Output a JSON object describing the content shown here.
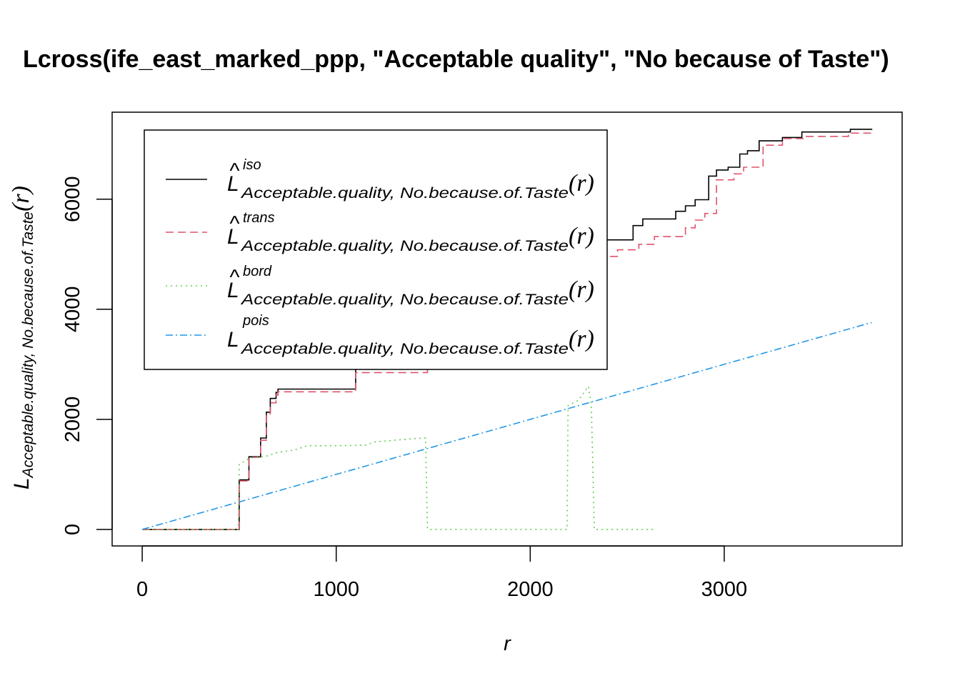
{
  "chart_data": {
    "type": "line",
    "title": "Lcross(ife_east_marked_ppp, \"Acceptable quality\", \"No because of Taste\")",
    "xlabel": "r",
    "ylabel": {
      "main": "L",
      "sub": "Acceptable.quality, No.because.of.Taste",
      "arg": "(r)"
    },
    "xlim": [
      -155,
      3917
    ],
    "ylim": [
      -300,
      7580
    ],
    "xticks": [
      0,
      1000,
      2000,
      3000
    ],
    "xtick_labels": [
      "0",
      "1000",
      "2000",
      "3000"
    ],
    "yticks": [
      0,
      2000,
      4000,
      6000
    ],
    "ytick_labels": [
      "0",
      "2000",
      "4000",
      "6000"
    ],
    "grid": false,
    "legend_position": "top-left",
    "series": [
      {
        "name": "iso",
        "legend": {
          "main": "L",
          "hat": "^",
          "sup": "iso",
          "sub": "Acceptable.quality, No.because.of.Taste",
          "arg": "(r)"
        },
        "color": "#000000",
        "dash": "",
        "step": true,
        "x": [
          0,
          495,
          500,
          550,
          610,
          640,
          660,
          690,
          700,
          1090,
          1100,
          1460,
          1470,
          1500,
          1560,
          1620,
          1770,
          1790,
          1810,
          1850,
          1900,
          2190,
          2230,
          2260,
          2300,
          2400,
          2530,
          2580,
          2620,
          2750,
          2800,
          2850,
          2920,
          2960,
          3020,
          3080,
          3120,
          3180,
          3300,
          3400,
          3650,
          3760
        ],
        "y": [
          0,
          0,
          900,
          1320,
          1660,
          2130,
          2380,
          2490,
          2550,
          2550,
          2920,
          2920,
          3040,
          3180,
          3400,
          3750,
          3760,
          3950,
          4200,
          4320,
          4780,
          4850,
          5160,
          5200,
          5260,
          5260,
          5520,
          5640,
          5640,
          5780,
          5880,
          5990,
          6420,
          6530,
          6580,
          6820,
          6880,
          7060,
          7120,
          7220,
          7270,
          7280
        ]
      },
      {
        "name": "trans",
        "legend": {
          "main": "L",
          "hat": "^",
          "sup": "trans",
          "sub": "Acceptable.quality, No.because.of.Taste",
          "arg": "(r)"
        },
        "color": "#df536b",
        "dash": "11,6",
        "step": true,
        "x": [
          0,
          495,
          500,
          550,
          610,
          640,
          660,
          690,
          700,
          1090,
          1100,
          1460,
          1470,
          1500,
          1560,
          1620,
          1750,
          1790,
          1810,
          1850,
          1900,
          2190,
          2230,
          2300,
          2450,
          2560,
          2640,
          2800,
          2850,
          2900,
          2960,
          3050,
          3100,
          3200,
          3300,
          3420,
          3640,
          3760
        ],
        "y": [
          0,
          0,
          880,
          1310,
          1620,
          2100,
          2300,
          2440,
          2500,
          2500,
          2850,
          2850,
          2980,
          3150,
          3350,
          3630,
          3630,
          3880,
          4120,
          4240,
          4600,
          4650,
          4840,
          4960,
          5080,
          5180,
          5320,
          5480,
          5620,
          5740,
          6350,
          6460,
          6580,
          6980,
          7100,
          7140,
          7200,
          7240
        ]
      },
      {
        "name": "bord",
        "legend": {
          "main": "L",
          "hat": "^",
          "sup": "bord",
          "sub": "Acceptable.quality, No.because.of.Taste",
          "arg": "(r)"
        },
        "color": "#61d04f",
        "dash": "2,5",
        "step": false,
        "x": [
          0,
          495,
          500,
          530,
          560,
          630,
          700,
          780,
          850,
          1000,
          1150,
          1200,
          1300,
          1400,
          1460,
          1470,
          1480,
          2190,
          2195,
          2250,
          2300,
          2315,
          2330,
          2650
        ],
        "y": [
          0,
          0,
          1180,
          1250,
          1300,
          1320,
          1400,
          1440,
          1520,
          1520,
          1530,
          1590,
          1620,
          1650,
          1660,
          10,
          0,
          0,
          2250,
          2350,
          2600,
          2250,
          0,
          0
        ]
      },
      {
        "name": "pois",
        "legend": {
          "main": "L",
          "hat": "",
          "sup": "pois",
          "sub": "Acceptable.quality, No.because.of.Taste",
          "arg": "(r)"
        },
        "color": "#2297e6",
        "dash": "10,4,2,4",
        "step": false,
        "x": [
          0,
          3760
        ],
        "y": [
          0,
          3760
        ]
      }
    ]
  }
}
